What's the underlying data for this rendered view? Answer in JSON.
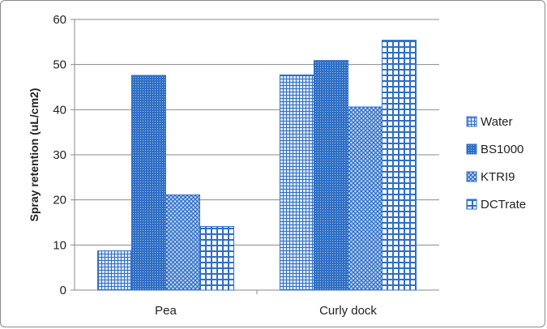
{
  "chart_data": {
    "type": "bar",
    "title": "",
    "xlabel": "",
    "ylabel": "Spray retention (uL/cm2)",
    "ylim": [
      0,
      60
    ],
    "yticks": [
      0,
      10,
      20,
      30,
      40,
      50,
      60
    ],
    "grid": true,
    "legend_position": "right",
    "categories": [
      "Pea",
      "Curly dock"
    ],
    "series": [
      {
        "name": "Water",
        "values": [
          8.7,
          47.7
        ],
        "color": "#2f6fc4",
        "pattern": "small-grid-light"
      },
      {
        "name": "BS1000",
        "values": [
          47.6,
          50.9
        ],
        "color": "#2f6fc4",
        "pattern": "dense-dots"
      },
      {
        "name": "KTRI9",
        "values": [
          21.1,
          40.6
        ],
        "color": "#2f6fc4",
        "pattern": "cross-hatch"
      },
      {
        "name": "DCTrate",
        "values": [
          14.1,
          55.4
        ],
        "color": "#2f6fc4",
        "pattern": "large-grid"
      }
    ]
  }
}
